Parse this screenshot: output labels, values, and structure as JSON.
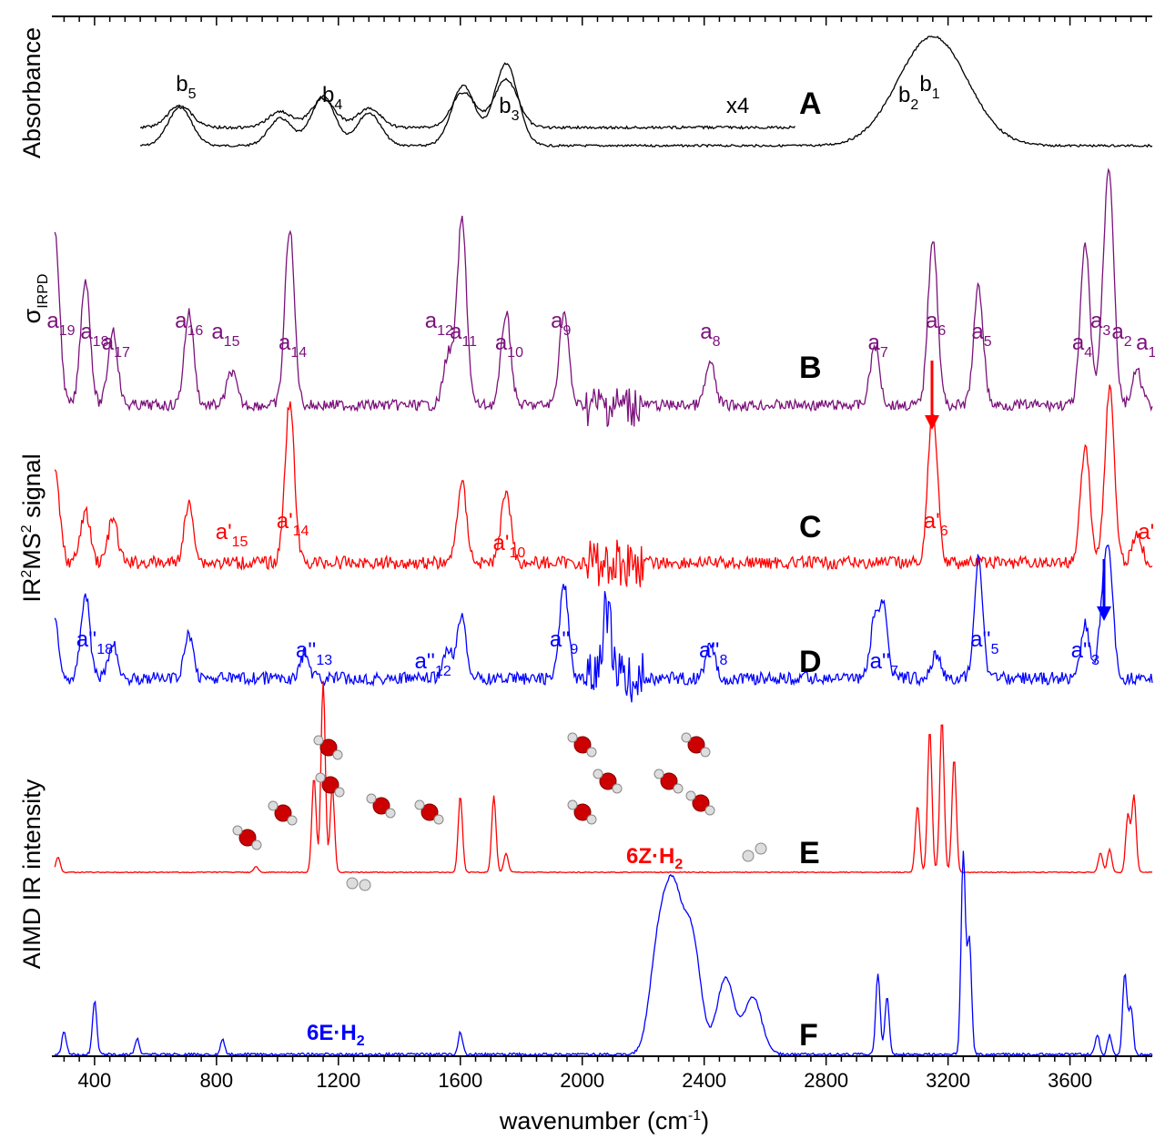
{
  "chart_data": {
    "type": "line",
    "title": "",
    "xlabel": "wavenumber (cm",
    "xlabel_sup": "-1",
    "xlabel_end": ")",
    "xlim": [
      260,
      3870
    ],
    "x_ticks": [
      400,
      800,
      1200,
      1600,
      2000,
      2400,
      2800,
      3200,
      3600
    ],
    "tick_labels": [
      "400",
      "800",
      "1200",
      "1600",
      "2000",
      "2400",
      "2800",
      "3200",
      "3600"
    ],
    "y_labels": {
      "absorbance": "Absorbance",
      "sigma_main": "σ",
      "sigma_sub": "IRPD",
      "ir2ms2_a": "IR",
      "ir2ms2_b": "2",
      "ir2ms2_c": "MS",
      "ir2ms2_d": "2",
      "ir2ms2_e": " signal",
      "aimd": "AIMD IR intensity"
    },
    "colors": {
      "A": "#000000",
      "B": "#7b117b",
      "C": "#ff0000",
      "D": "#0000ff",
      "E": "#ff0000",
      "F": "#0000ff"
    },
    "series": [
      {
        "name": "A",
        "peaks": [
          [
            680,
            0.35
          ],
          [
            1010,
            0.25
          ],
          [
            1150,
            0.45
          ],
          [
            1300,
            0.3
          ],
          [
            1610,
            0.55
          ],
          [
            1750,
            0.75
          ],
          [
            3150,
            1.0
          ]
        ]
      },
      {
        "name": "B",
        "peaks": [
          [
            270,
            1.0
          ],
          [
            370,
            0.75
          ],
          [
            460,
            0.45
          ],
          [
            710,
            0.55
          ],
          [
            850,
            0.2
          ],
          [
            1040,
            1.05
          ],
          [
            1560,
            0.3
          ],
          [
            1605,
            1.1
          ],
          [
            1750,
            0.55
          ],
          [
            1940,
            0.55
          ],
          [
            2420,
            0.25
          ],
          [
            2960,
            0.35
          ],
          [
            3150,
            1.0
          ],
          [
            3300,
            0.7
          ],
          [
            3650,
            0.95
          ],
          [
            3710,
            0.35
          ],
          [
            3730,
            1.25
          ],
          [
            3820,
            0.2
          ]
        ]
      },
      {
        "name": "C",
        "peaks": [
          [
            270,
            0.6
          ],
          [
            370,
            0.35
          ],
          [
            460,
            0.3
          ],
          [
            710,
            0.4
          ],
          [
            1040,
            1.1
          ],
          [
            1605,
            0.55
          ],
          [
            1750,
            0.5
          ],
          [
            3150,
            1.05
          ],
          [
            3650,
            0.8
          ],
          [
            3730,
            1.2
          ],
          [
            3820,
            0.2
          ]
        ]
      },
      {
        "name": "D",
        "peaks": [
          [
            270,
            0.55
          ],
          [
            370,
            0.85
          ],
          [
            460,
            0.35
          ],
          [
            710,
            0.45
          ],
          [
            1090,
            0.25
          ],
          [
            1560,
            0.3
          ],
          [
            1605,
            0.65
          ],
          [
            1940,
            0.95
          ],
          [
            2080,
            0.7
          ],
          [
            2420,
            0.35
          ],
          [
            2960,
            0.6
          ],
          [
            2990,
            0.65
          ],
          [
            3160,
            0.25
          ],
          [
            3300,
            1.2
          ],
          [
            3650,
            0.55
          ],
          [
            3710,
            0.75
          ],
          [
            3730,
            0.95
          ]
        ]
      },
      {
        "name": "E",
        "peaks": [
          [
            280,
            0.08
          ],
          [
            930,
            0.03
          ],
          [
            1120,
            0.5
          ],
          [
            1150,
            1.0
          ],
          [
            1180,
            0.45
          ],
          [
            1600,
            0.4
          ],
          [
            1710,
            0.4
          ],
          [
            1750,
            0.1
          ],
          [
            3100,
            0.35
          ],
          [
            3140,
            0.75
          ],
          [
            3180,
            0.8
          ],
          [
            3220,
            0.6
          ],
          [
            3700,
            0.1
          ],
          [
            3730,
            0.12
          ],
          [
            3790,
            0.3
          ],
          [
            3810,
            0.4
          ]
        ]
      },
      {
        "name": "F",
        "peaks": [
          [
            300,
            0.12
          ],
          [
            400,
            0.28
          ],
          [
            540,
            0.08
          ],
          [
            820,
            0.08
          ],
          [
            1600,
            0.12
          ],
          [
            2250,
            0.55
          ],
          [
            2300,
            0.75
          ],
          [
            2360,
            0.6
          ],
          [
            2470,
            0.4
          ],
          [
            2560,
            0.3
          ],
          [
            2970,
            0.42
          ],
          [
            3000,
            0.3
          ],
          [
            3250,
            1.05
          ],
          [
            3270,
            0.6
          ],
          [
            3690,
            0.1
          ],
          [
            3730,
            0.1
          ],
          [
            3780,
            0.42
          ],
          [
            3800,
            0.25
          ]
        ]
      }
    ],
    "panel_labels": [
      "A",
      "B",
      "C",
      "D",
      "E",
      "F"
    ],
    "annotations": {
      "A": [
        {
          "m": "b",
          "s": "5",
          "x": 700
        },
        {
          "m": "b",
          "s": "4",
          "x": 1180
        },
        {
          "m": "b",
          "s": "3",
          "x": 1760
        },
        {
          "m": "b",
          "s": "1",
          "x": 3140
        },
        {
          "m": "b",
          "s": "2",
          "x": 3070
        },
        {
          "m": "x4",
          "s": "",
          "x": 2510
        }
      ],
      "B": [
        {
          "m": "a",
          "s": "19",
          "x": 290
        },
        {
          "m": "a",
          "s": "18",
          "x": 400
        },
        {
          "m": "a",
          "s": "17",
          "x": 470
        },
        {
          "m": "a",
          "s": "16",
          "x": 710
        },
        {
          "m": "a",
          "s": "15",
          "x": 830
        },
        {
          "m": "a",
          "s": "14",
          "x": 1050
        },
        {
          "m": "a",
          "s": "12",
          "x": 1530
        },
        {
          "m": "a",
          "s": "11",
          "x": 1610
        },
        {
          "m": "a",
          "s": "10",
          "x": 1760
        },
        {
          "m": "a",
          "s": "9",
          "x": 1930
        },
        {
          "m": "a",
          "s": "8",
          "x": 2420
        },
        {
          "m": "a",
          "s": "7",
          "x": 2970
        },
        {
          "m": "a",
          "s": "6",
          "x": 3160
        },
        {
          "m": "a",
          "s": "5",
          "x": 3310
        },
        {
          "m": "a",
          "s": "4",
          "x": 3640
        },
        {
          "m": "a",
          "s": "3",
          "x": 3700
        },
        {
          "m": "a",
          "s": "2",
          "x": 3770
        },
        {
          "m": "a",
          "s": "1",
          "x": 3850
        }
      ],
      "C": [
        {
          "m": "a'",
          "s": "14",
          "x": 1050
        },
        {
          "m": "a'",
          "s": "15",
          "x": 850
        },
        {
          "m": "a'",
          "s": "10",
          "x": 1760
        },
        {
          "m": "a'",
          "s": "6",
          "x": 3160
        },
        {
          "m": "a'",
          "s": "",
          "x": 3850
        }
      ],
      "D": [
        {
          "m": "a''",
          "s": "18",
          "x": 400
        },
        {
          "m": "a''",
          "s": "13",
          "x": 1120
        },
        {
          "m": "a''",
          "s": "12",
          "x": 1510
        },
        {
          "m": "a''",
          "s": "9",
          "x": 1940
        },
        {
          "m": "a''",
          "s": "8",
          "x": 2430
        },
        {
          "m": "a''",
          "s": "7",
          "x": 2990
        },
        {
          "m": "a''",
          "s": "5",
          "x": 3320
        },
        {
          "m": "a''",
          "s": "3",
          "x": 3650
        }
      ]
    },
    "structure_labels": [
      {
        "text": "6Z·H",
        "sub": "2",
        "color": "#ff0000"
      },
      {
        "text": "6E·H",
        "sub": "2",
        "color": "#0000ff"
      }
    ]
  }
}
